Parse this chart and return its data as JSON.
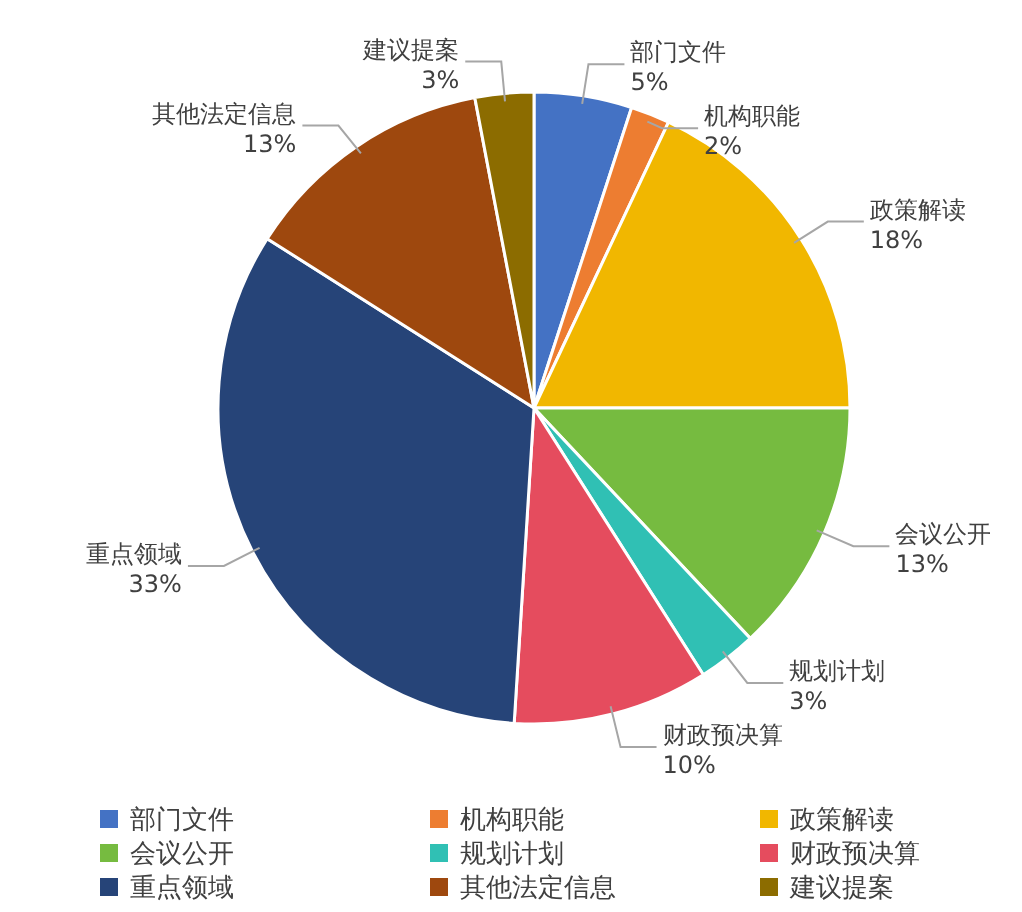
{
  "chart_data": {
    "type": "pie",
    "categories": [
      "部门文件",
      "机构职能",
      "政策解读",
      "会议公开",
      "规划计划",
      "财政预决算",
      "重点领域",
      "其他法定信息",
      "建议提案"
    ],
    "values": [
      5,
      2,
      18,
      13,
      3,
      10,
      33,
      13,
      3
    ],
    "colors": [
      "#4472c4",
      "#ed7d31",
      "#f1b700",
      "#76bb40",
      "#30c0b4",
      "#e54c5e",
      "#264478",
      "#9e480e",
      "#8c6c00"
    ],
    "value_labels": [
      "5%",
      "2%",
      "18%",
      "13%",
      "3%",
      "10%",
      "33%",
      "13%",
      "3%"
    ],
    "legend": "bottom"
  }
}
